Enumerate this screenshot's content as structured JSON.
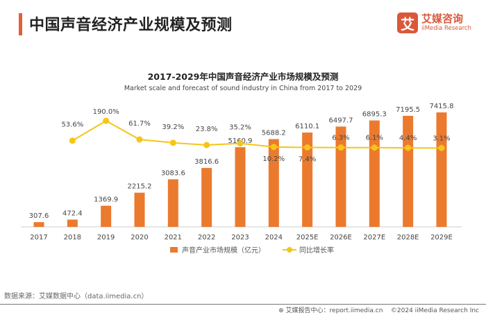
{
  "header": {
    "title": "中国声音经济产业规模及预测",
    "accent_color": "#E0603A"
  },
  "logo": {
    "mark": "艾",
    "name_cn": "艾媒咨询",
    "name_en": "iiMedia Research",
    "color": "#D9583A"
  },
  "chart_data": {
    "type": "bar+line",
    "title": "2017-2029年中国声音经济产业市场规模及预测",
    "subtitle": "Market scale and forecast of sound industry in China from 2017 to 2029",
    "categories": [
      "2017",
      "2018",
      "2019",
      "2020",
      "2021",
      "2022",
      "2023",
      "2024",
      "2025E",
      "2026E",
      "2027E",
      "2028E",
      "2029E"
    ],
    "series": [
      {
        "name": "声音产业市场规模（亿元）",
        "type": "bar",
        "color": "#EB7A2E",
        "values": [
          307.6,
          472.4,
          1369.9,
          2215.2,
          3083.6,
          3816.6,
          5160.9,
          5688.2,
          6110.1,
          6497.7,
          6895.3,
          7195.5,
          7415.8
        ],
        "labels": [
          "307.6",
          "472.4",
          "1369.9",
          "2215.2",
          "3083.6",
          "3816.6",
          "5160.9",
          "5688.2",
          "6110.1",
          "6497.7",
          "6895.3",
          "7195.5",
          "7415.8"
        ]
      },
      {
        "name": "同比增长率",
        "type": "line",
        "color": "#F5C518",
        "values": [
          null,
          53.6,
          190.0,
          61.7,
          39.2,
          23.8,
          35.2,
          10.2,
          7.4,
          6.3,
          6.1,
          4.4,
          3.1
        ],
        "labels": [
          "",
          "53.6%",
          "190.0%",
          "61.7%",
          "39.2%",
          "23.8%",
          "35.2%",
          "10.2%",
          "7.4%",
          "6.3%",
          "6.1%",
          "4.4%",
          "3.1%"
        ]
      }
    ],
    "grid": false,
    "legend": "bottom"
  },
  "footer": {
    "source": "数据来源：艾媒数据中心（data.iimedia.cn）",
    "report_center": "艾媒报告中心：report.iimedia.cn",
    "copyright": "©2024  iiMedia Research  Inc"
  }
}
